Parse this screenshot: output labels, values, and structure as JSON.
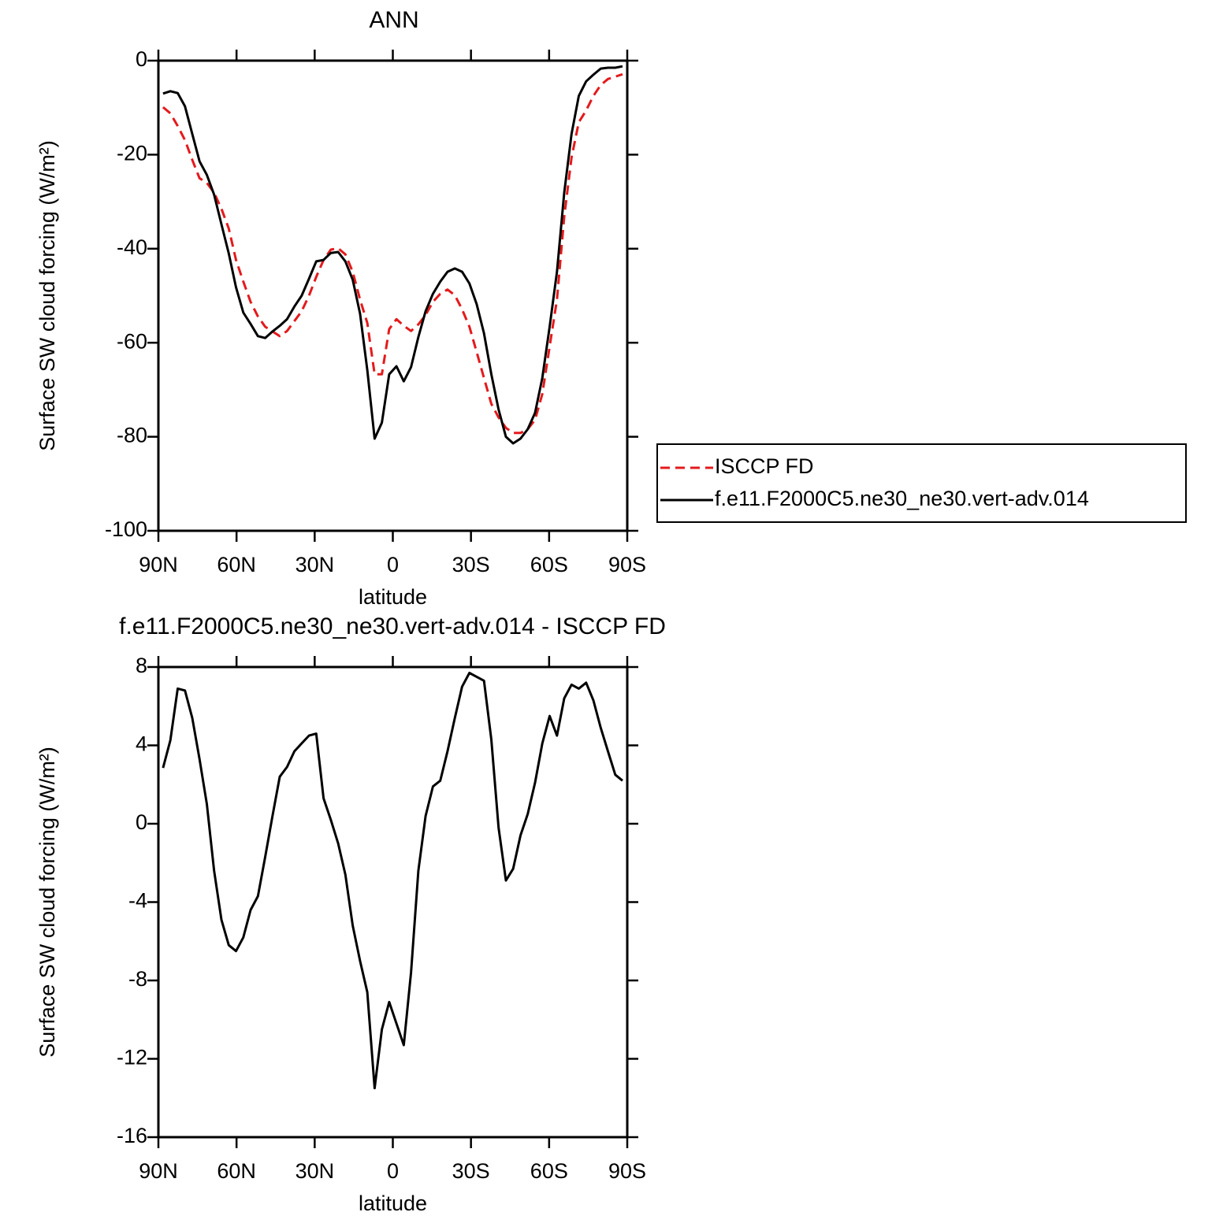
{
  "chart_data": [
    {
      "type": "line",
      "title": "ANN",
      "xlabel": "latitude",
      "ylabel": "Surface SW cloud forcing (W/m²)",
      "x": [
        88.2,
        85.4,
        82.6,
        79.8,
        77,
        74.2,
        71.4,
        68.6,
        65.8,
        63,
        60.2,
        57.4,
        54.6,
        51.8,
        49,
        46.2,
        43.4,
        40.6,
        37.8,
        35,
        32.2,
        29.4,
        26.6,
        23.8,
        21,
        18.2,
        15.4,
        12.6,
        9.8,
        7,
        4.2,
        1.4,
        -1.4,
        -4.2,
        -7,
        -9.8,
        -12.6,
        -15.4,
        -18.2,
        -21,
        -23.8,
        -26.6,
        -29.4,
        -32.2,
        -35,
        -37.8,
        -40.6,
        -43.4,
        -46.2,
        -49,
        -51.8,
        -54.6,
        -57.4,
        -60.2,
        -63,
        -65.8,
        -68.6,
        -71.4,
        -74.2,
        -77,
        -79.8,
        -82.6,
        -85.4,
        -88.2
      ],
      "series": [
        {
          "name": "ISCCP FD",
          "color": "#e41a1c",
          "dashed": true,
          "values": [
            -9.9,
            -11.2,
            -13.9,
            -16.9,
            -21.1,
            -25,
            -26,
            -28.1,
            -31.5,
            -35.7,
            -42.4,
            -47,
            -51.3,
            -54.4,
            -56.6,
            -57.6,
            -58.6,
            -57.5,
            -55.4,
            -53.3,
            -50,
            -46,
            -42.4,
            -40.2,
            -39.9,
            -41.2,
            -44.9,
            -50.8,
            -55.8,
            -66.7,
            -66.7,
            -57.1,
            -55,
            -56.4,
            -57.5,
            -56.1,
            -54.1,
            -51.3,
            -49.6,
            -48.7,
            -49.9,
            -52.9,
            -56.6,
            -62,
            -67.5,
            -73,
            -75.9,
            -78.1,
            -79.2,
            -79.2,
            -78.4,
            -76.4,
            -70.9,
            -60.8,
            -50.8,
            -33.2,
            -20.6,
            -13.1,
            -10.6,
            -7.5,
            -5.2,
            -3.9,
            -3.4,
            -2.9
          ]
        },
        {
          "name": "f.e11.F2000C5.ne30_ne30.vert-adv.014",
          "color": "#000000",
          "dashed": false,
          "values": [
            -7,
            -6.5,
            -6.9,
            -9.7,
            -15.6,
            -21.4,
            -24.3,
            -28.5,
            -34.8,
            -41,
            -48.2,
            -53.6,
            -56,
            -58.6,
            -59,
            -57.6,
            -56.4,
            -55,
            -52.3,
            -50,
            -46.4,
            -42.7,
            -42.4,
            -40.9,
            -40.7,
            -42.7,
            -46.6,
            -53.8,
            -65.8,
            -80.4,
            -77,
            -66.7,
            -65,
            -68.2,
            -65.2,
            -58.8,
            -53.3,
            -49.6,
            -47,
            -44.9,
            -44.2,
            -44.9,
            -47.4,
            -51.8,
            -58,
            -66.7,
            -74.2,
            -80,
            -81.4,
            -80.4,
            -78.4,
            -74.9,
            -67.5,
            -56.6,
            -44.9,
            -28.1,
            -15.6,
            -7.5,
            -4.4,
            -3,
            -1.7,
            -1.5,
            -1.5,
            -1.2
          ]
        }
      ],
      "xlim": [
        90,
        -90
      ],
      "xticks": [
        {
          "value": 90,
          "label": "90N"
        },
        {
          "value": 60,
          "label": "60N"
        },
        {
          "value": 30,
          "label": "30N"
        },
        0,
        {
          "value": -30,
          "label": "30S"
        },
        {
          "value": -60,
          "label": "60S"
        },
        {
          "value": -90,
          "label": "90S"
        }
      ],
      "ylim": [
        -100,
        0
      ],
      "yticks": [
        -100,
        -80,
        -60,
        -40,
        -20,
        0
      ],
      "legend": "right"
    },
    {
      "type": "line",
      "title": "f.e11.F2000C5.ne30_ne30.vert-adv.014 - ISCCP FD",
      "xlabel": "latitude",
      "ylabel": "Surface SW cloud forcing (W/m²)",
      "x": [
        88.2,
        85.4,
        82.6,
        79.8,
        77,
        74.2,
        71.4,
        68.6,
        65.8,
        63,
        60.2,
        57.4,
        54.6,
        51.8,
        49,
        46.2,
        43.4,
        40.6,
        37.8,
        35,
        32.2,
        29.4,
        26.6,
        23.8,
        21,
        18.2,
        15.4,
        12.6,
        9.8,
        7,
        4.2,
        1.4,
        -1.4,
        -4.2,
        -7,
        -9.8,
        -12.6,
        -15.4,
        -18.2,
        -21,
        -23.8,
        -26.6,
        -29.4,
        -32.2,
        -35,
        -37.8,
        -40.6,
        -43.4,
        -46.2,
        -49,
        -51.8,
        -54.6,
        -57.4,
        -60.2,
        -63,
        -65.8,
        -68.6,
        -71.4,
        -74.2,
        -77,
        -79.8,
        -82.6,
        -85.4,
        -88.2
      ],
      "color": "#000000",
      "values": [
        2.85,
        4.26,
        6.9,
        6.8,
        5.4,
        3.3,
        1.0,
        -2.4,
        -4.9,
        -6.2,
        -6.5,
        -5.8,
        -4.4,
        -3.7,
        -1.7,
        0.4,
        2.4,
        2.9,
        3.7,
        4.1,
        4.5,
        4.6,
        1.3,
        0.2,
        -1.0,
        -2.6,
        -5.2,
        -7.0,
        -8.6,
        -13.5,
        -10.5,
        -9.1,
        -10.2,
        -11.3,
        -7.6,
        -2.4,
        0.4,
        1.9,
        2.2,
        3.7,
        5.4,
        7.0,
        7.7,
        7.5,
        7.3,
        4.3,
        -0.2,
        -2.9,
        -2.3,
        -0.6,
        0.5,
        2.1,
        4.1,
        5.5,
        4.5,
        6.4,
        7.1,
        6.9,
        7.2,
        6.3,
        4.9,
        3.7,
        2.5,
        2.2
      ],
      "xlim": [
        90,
        -90
      ],
      "xticks": [
        {
          "value": 90,
          "label": "90N"
        },
        {
          "value": 60,
          "label": "60N"
        },
        {
          "value": 30,
          "label": "30N"
        },
        0,
        {
          "value": -30,
          "label": "30S"
        },
        {
          "value": -60,
          "label": "60S"
        },
        {
          "value": -90,
          "label": "90S"
        }
      ],
      "ylim": [
        -16,
        8
      ],
      "yticks": [
        -16,
        -12,
        -8,
        -4,
        0,
        4,
        8
      ]
    }
  ]
}
